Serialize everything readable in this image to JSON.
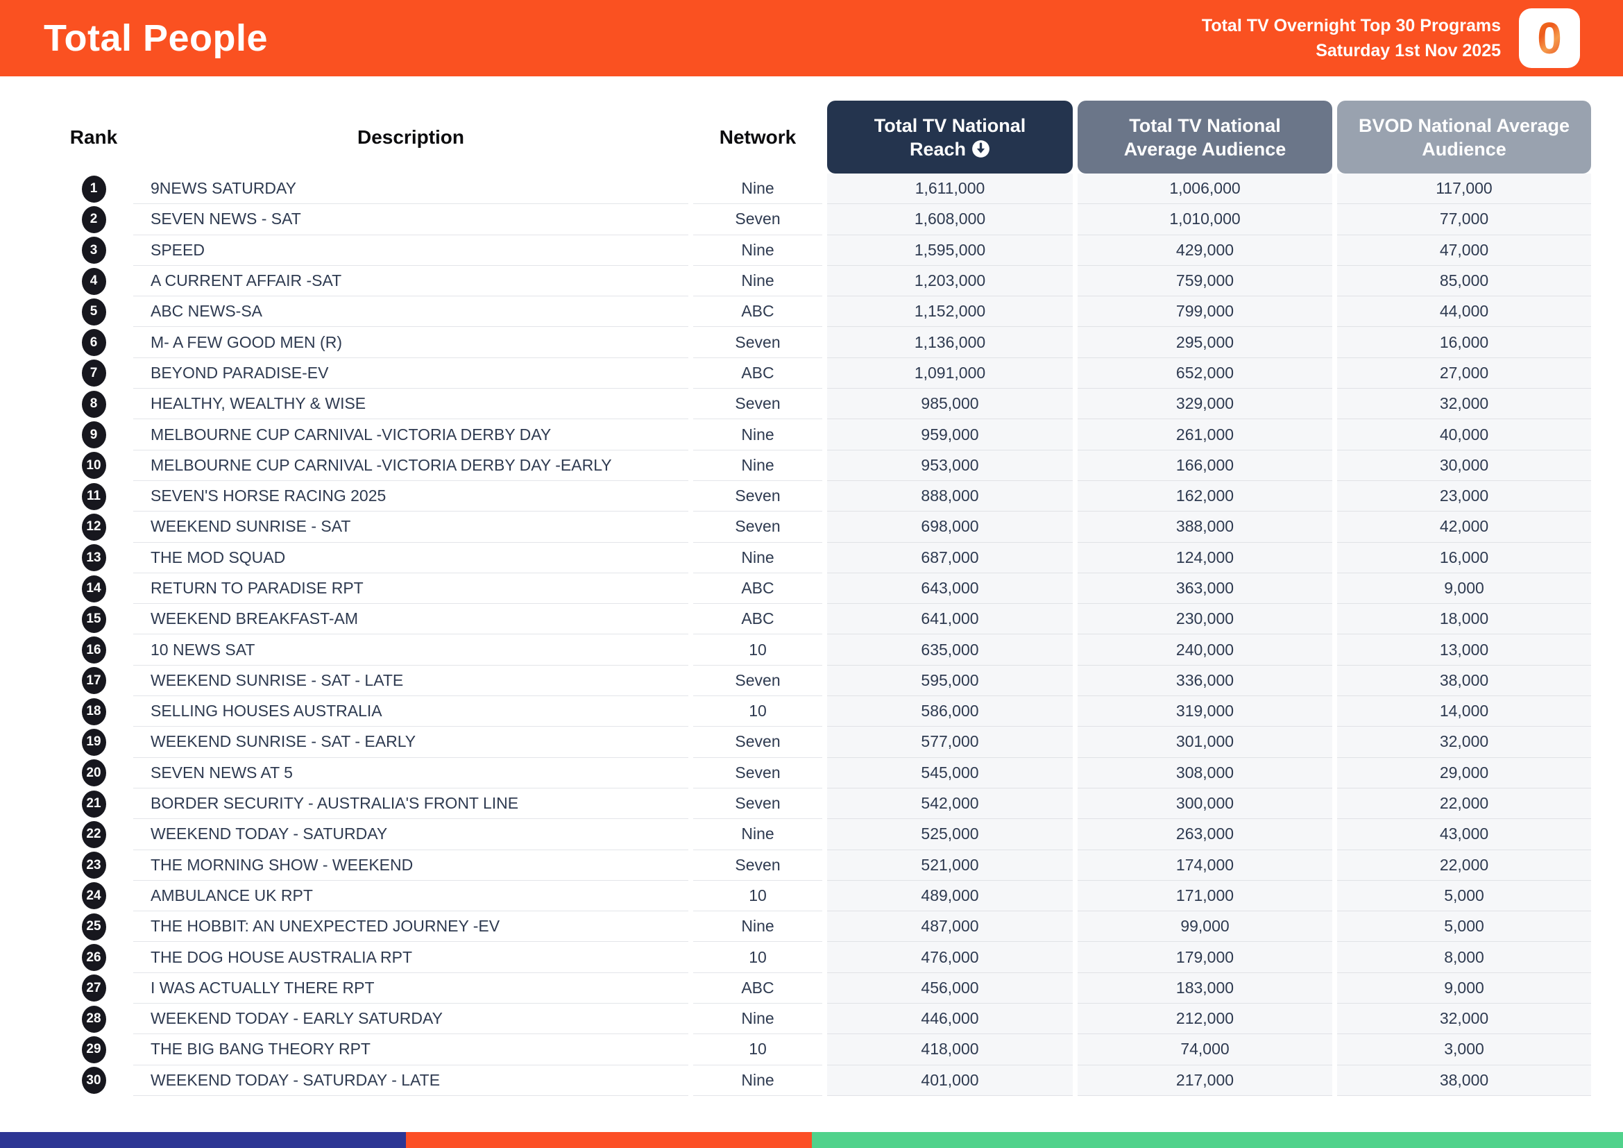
{
  "header": {
    "title": "Total People",
    "subtitle_line1": "Total TV Overnight Top 30 Programs",
    "subtitle_line2": "Saturday 1st Nov 2025",
    "logo_text": "0",
    "logo_name": "oztam-logo"
  },
  "table": {
    "columns": {
      "rank": "Rank",
      "description": "Description",
      "network": "Network",
      "reach": "Total TV National Reach",
      "avg": "Total TV National Average Audience",
      "bvod": "BVOD National Average Audience"
    },
    "sort_icon": "circle-arrow-down",
    "sorted_by": "Total TV National Reach",
    "rows": [
      {
        "rank": 1,
        "description": "9NEWS SATURDAY",
        "network": "Nine",
        "reach": "1,611,000",
        "avg": "1,006,000",
        "bvod": "117,000"
      },
      {
        "rank": 2,
        "description": "SEVEN NEWS - SAT",
        "network": "Seven",
        "reach": "1,608,000",
        "avg": "1,010,000",
        "bvod": "77,000"
      },
      {
        "rank": 3,
        "description": "SPEED",
        "network": "Nine",
        "reach": "1,595,000",
        "avg": "429,000",
        "bvod": "47,000"
      },
      {
        "rank": 4,
        "description": "A CURRENT AFFAIR -SAT",
        "network": "Nine",
        "reach": "1,203,000",
        "avg": "759,000",
        "bvod": "85,000"
      },
      {
        "rank": 5,
        "description": "ABC NEWS-SA",
        "network": "ABC",
        "reach": "1,152,000",
        "avg": "799,000",
        "bvod": "44,000"
      },
      {
        "rank": 6,
        "description": "M- A FEW GOOD MEN (R)",
        "network": "Seven",
        "reach": "1,136,000",
        "avg": "295,000",
        "bvod": "16,000"
      },
      {
        "rank": 7,
        "description": "BEYOND PARADISE-EV",
        "network": "ABC",
        "reach": "1,091,000",
        "avg": "652,000",
        "bvod": "27,000"
      },
      {
        "rank": 8,
        "description": "HEALTHY, WEALTHY & WISE",
        "network": "Seven",
        "reach": "985,000",
        "avg": "329,000",
        "bvod": "32,000"
      },
      {
        "rank": 9,
        "description": "MELBOURNE CUP CARNIVAL -VICTORIA DERBY DAY",
        "network": "Nine",
        "reach": "959,000",
        "avg": "261,000",
        "bvod": "40,000"
      },
      {
        "rank": 10,
        "description": "MELBOURNE CUP CARNIVAL -VICTORIA DERBY DAY -EARLY",
        "network": "Nine",
        "reach": "953,000",
        "avg": "166,000",
        "bvod": "30,000"
      },
      {
        "rank": 11,
        "description": "SEVEN'S HORSE RACING 2025",
        "network": "Seven",
        "reach": "888,000",
        "avg": "162,000",
        "bvod": "23,000"
      },
      {
        "rank": 12,
        "description": "WEEKEND SUNRISE - SAT",
        "network": "Seven",
        "reach": "698,000",
        "avg": "388,000",
        "bvod": "42,000"
      },
      {
        "rank": 13,
        "description": "THE MOD SQUAD",
        "network": "Nine",
        "reach": "687,000",
        "avg": "124,000",
        "bvod": "16,000"
      },
      {
        "rank": 14,
        "description": "RETURN TO PARADISE RPT",
        "network": "ABC",
        "reach": "643,000",
        "avg": "363,000",
        "bvod": "9,000"
      },
      {
        "rank": 15,
        "description": "WEEKEND BREAKFAST-AM",
        "network": "ABC",
        "reach": "641,000",
        "avg": "230,000",
        "bvod": "18,000"
      },
      {
        "rank": 16,
        "description": "10 NEWS SAT",
        "network": "10",
        "reach": "635,000",
        "avg": "240,000",
        "bvod": "13,000"
      },
      {
        "rank": 17,
        "description": "WEEKEND SUNRISE - SAT - LATE",
        "network": "Seven",
        "reach": "595,000",
        "avg": "336,000",
        "bvod": "38,000"
      },
      {
        "rank": 18,
        "description": "SELLING HOUSES AUSTRALIA",
        "network": "10",
        "reach": "586,000",
        "avg": "319,000",
        "bvod": "14,000"
      },
      {
        "rank": 19,
        "description": "WEEKEND SUNRISE - SAT - EARLY",
        "network": "Seven",
        "reach": "577,000",
        "avg": "301,000",
        "bvod": "32,000"
      },
      {
        "rank": 20,
        "description": "SEVEN NEWS AT 5",
        "network": "Seven",
        "reach": "545,000",
        "avg": "308,000",
        "bvod": "29,000"
      },
      {
        "rank": 21,
        "description": "BORDER SECURITY - AUSTRALIA'S FRONT LINE",
        "network": "Seven",
        "reach": "542,000",
        "avg": "300,000",
        "bvod": "22,000"
      },
      {
        "rank": 22,
        "description": "WEEKEND TODAY - SATURDAY",
        "network": "Nine",
        "reach": "525,000",
        "avg": "263,000",
        "bvod": "43,000"
      },
      {
        "rank": 23,
        "description": "THE MORNING SHOW - WEEKEND",
        "network": "Seven",
        "reach": "521,000",
        "avg": "174,000",
        "bvod": "22,000"
      },
      {
        "rank": 24,
        "description": "AMBULANCE UK RPT",
        "network": "10",
        "reach": "489,000",
        "avg": "171,000",
        "bvod": "5,000"
      },
      {
        "rank": 25,
        "description": "THE HOBBIT: AN UNEXPECTED JOURNEY -EV",
        "network": "Nine",
        "reach": "487,000",
        "avg": "99,000",
        "bvod": "5,000"
      },
      {
        "rank": 26,
        "description": "THE DOG HOUSE AUSTRALIA RPT",
        "network": "10",
        "reach": "476,000",
        "avg": "179,000",
        "bvod": "8,000"
      },
      {
        "rank": 27,
        "description": "I WAS ACTUALLY THERE RPT",
        "network": "ABC",
        "reach": "456,000",
        "avg": "183,000",
        "bvod": "9,000"
      },
      {
        "rank": 28,
        "description": "WEEKEND TODAY - EARLY SATURDAY",
        "network": "Nine",
        "reach": "446,000",
        "avg": "212,000",
        "bvod": "32,000"
      },
      {
        "rank": 29,
        "description": "THE BIG BANG THEORY RPT",
        "network": "10",
        "reach": "418,000",
        "avg": "74,000",
        "bvod": "3,000"
      },
      {
        "rank": 30,
        "description": "WEEKEND TODAY - SATURDAY - LATE",
        "network": "Nine",
        "reach": "401,000",
        "avg": "217,000",
        "bvod": "38,000"
      }
    ]
  },
  "colors": {
    "accent_orange": "#FA5121",
    "pill_dark": "#24344E",
    "pill_mid": "#6B7689",
    "pill_light": "#99A2AF",
    "row_text": "#2E3A50",
    "num_bg": "#F6F7F9",
    "footer_blue": "#2D3694",
    "footer_orange": "#FC4F26",
    "footer_green": "#50D28B"
  }
}
